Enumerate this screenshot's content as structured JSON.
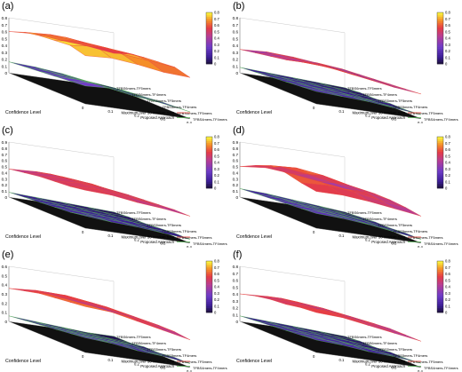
{
  "figure": {
    "panels": [
      "(a)",
      "(b)",
      "(c)",
      "(d)",
      "(e)",
      "(f)"
    ]
  },
  "chart_data": [
    {
      "type": "surface",
      "panel": "(a)",
      "xlabel": "Confidence Level",
      "x_ticks": [
        "0",
        "0.1",
        "0.2",
        "0.3",
        "0.4"
      ],
      "y_categories": [
        "TFBS4mers-TF4mers",
        "TFBS4mers-TF5mers",
        "TFBS5mers-TF4mers",
        "TFBS5mers-TF5mers",
        "TFBS6mers-TF4mers",
        "TFBS6mers-TF5mers"
      ],
      "z_ticks": [
        "0",
        "0.1",
        "0.2",
        "0.3",
        "0.4",
        "0.5",
        "0.6",
        "0.7",
        "0.8"
      ],
      "zlim": [
        0,
        0.8
      ],
      "colorbar_ticks": [
        "0",
        "0.1",
        "0.2",
        "0.3",
        "0.4",
        "0.5",
        "0.6",
        "0.7",
        "0.8"
      ],
      "legend": [
        {
          "label": "Maximum over 50 random runs",
          "color": "#e8433a"
        },
        {
          "label": "Proposed Approach",
          "color": "#5ab45a"
        }
      ],
      "series": [
        {
          "name": "Maximum over 50 random runs",
          "values": [
            [
              0.6,
              0.68,
              0.72,
              0.74,
              0.76,
              0.7
            ],
            [
              0.62,
              0.7,
              0.75,
              0.78,
              0.8,
              0.72
            ],
            [
              0.58,
              0.66,
              0.7,
              0.74,
              0.74,
              0.68
            ],
            [
              0.55,
              0.62,
              0.66,
              0.7,
              0.7,
              0.62
            ],
            [
              0.5,
              0.58,
              0.62,
              0.64,
              0.66,
              0.6
            ]
          ]
        },
        {
          "name": "Proposed Approach",
          "values": [
            [
              0.16,
              0.18,
              0.2,
              0.22,
              0.24,
              0.26
            ],
            [
              0.14,
              0.16,
              0.18,
              0.22,
              0.26,
              0.28
            ],
            [
              0.1,
              0.12,
              0.14,
              0.18,
              0.22,
              0.24
            ],
            [
              0.04,
              0.06,
              0.08,
              0.1,
              0.14,
              0.18
            ],
            [
              0.0,
              0.02,
              0.04,
              0.06,
              0.08,
              0.1
            ]
          ]
        }
      ]
    },
    {
      "type": "surface",
      "panel": "(b)",
      "xlabel": "Confidence Level",
      "x_ticks": [
        "0",
        "0.1",
        "0.2",
        "0.3",
        "0.4"
      ],
      "y_categories": [
        "TFBS4mers-TF4mers",
        "TFBS4mers-TF5mers",
        "TFBS5mers-TF4mers",
        "TFBS5mers-TF5mers",
        "TFBS6mers-TF4mers",
        "TFBS6mers-TF5mers"
      ],
      "z_ticks": [
        "0",
        "0.1",
        "0.2",
        "0.3",
        "0.4",
        "0.5",
        "0.6",
        "0.7",
        "0.8"
      ],
      "zlim": [
        0,
        0.8
      ],
      "colorbar_ticks": [
        "0",
        "0.1",
        "0.2",
        "0.3",
        "0.4",
        "0.5",
        "0.6",
        "0.7",
        "0.8"
      ],
      "legend": [
        {
          "label": "Maximum over 50 random runs",
          "color": "#e8433a"
        },
        {
          "label": "Proposed Approach",
          "color": "#5ab45a"
        }
      ],
      "series": [
        {
          "name": "Maximum over 50 random runs",
          "values": [
            [
              0.34,
              0.38,
              0.42,
              0.46,
              0.52,
              0.6
            ],
            [
              0.36,
              0.4,
              0.44,
              0.46,
              0.5,
              0.56
            ],
            [
              0.34,
              0.36,
              0.4,
              0.42,
              0.44,
              0.48
            ],
            [
              0.3,
              0.32,
              0.34,
              0.36,
              0.38,
              0.4
            ],
            [
              0.26,
              0.28,
              0.3,
              0.32,
              0.34,
              0.36
            ]
          ]
        },
        {
          "name": "Proposed Approach",
          "values": [
            [
              0.08,
              0.1,
              0.12,
              0.14,
              0.16,
              0.18
            ],
            [
              0.06,
              0.08,
              0.1,
              0.12,
              0.14,
              0.16
            ],
            [
              0.04,
              0.06,
              0.08,
              0.1,
              0.12,
              0.14
            ],
            [
              0.02,
              0.04,
              0.06,
              0.06,
              0.08,
              0.1
            ],
            [
              0.0,
              0.02,
              0.02,
              0.04,
              0.04,
              0.06
            ]
          ]
        }
      ]
    },
    {
      "type": "surface",
      "panel": "(c)",
      "xlabel": "Confidence Level",
      "x_ticks": [
        "0",
        "0.1",
        "0.2",
        "0.3",
        "0.4"
      ],
      "y_categories": [
        "TFBS4mers-TF4mers",
        "TFBS4mers-TF5mers",
        "TFBS5mers-TF4mers",
        "TFBS5mers-TF5mers",
        "TFBS6mers-TF4mers",
        "TFBS6mers-TF5mers"
      ],
      "z_ticks": [
        "0",
        "0.1",
        "0.2",
        "0.3",
        "0.4",
        "0.5",
        "0.6",
        "0.7",
        "0.8",
        "0.9"
      ],
      "zlim": [
        0,
        0.9
      ],
      "colorbar_ticks": [
        "0",
        "0.1",
        "0.2",
        "0.3",
        "0.4",
        "0.5",
        "0.6",
        "0.7",
        "0.8"
      ],
      "legend": [
        {
          "label": "Maximum over 50 random runs",
          "color": "#e8433a"
        },
        {
          "label": "Proposed Approach",
          "color": "#5ab45a"
        }
      ],
      "series": [
        {
          "name": "Maximum over 50 random runs",
          "values": [
            [
              0.46,
              0.5,
              0.54,
              0.56,
              0.58,
              0.62
            ],
            [
              0.48,
              0.54,
              0.58,
              0.6,
              0.6,
              0.6
            ],
            [
              0.46,
              0.5,
              0.54,
              0.56,
              0.56,
              0.54
            ],
            [
              0.4,
              0.44,
              0.46,
              0.48,
              0.5,
              0.5
            ],
            [
              0.34,
              0.38,
              0.4,
              0.42,
              0.44,
              0.44
            ]
          ]
        },
        {
          "name": "Proposed Approach",
          "values": [
            [
              0.08,
              0.1,
              0.12,
              0.14,
              0.16,
              0.2
            ],
            [
              0.06,
              0.08,
              0.1,
              0.12,
              0.14,
              0.16
            ],
            [
              0.04,
              0.06,
              0.08,
              0.1,
              0.12,
              0.14
            ],
            [
              0.02,
              0.04,
              0.06,
              0.08,
              0.08,
              0.1
            ],
            [
              0.0,
              0.02,
              0.02,
              0.04,
              0.06,
              0.06
            ]
          ]
        }
      ]
    },
    {
      "type": "surface",
      "panel": "(d)",
      "xlabel": "Confidence Level",
      "x_ticks": [
        "0",
        "0.1",
        "0.2",
        "0.3",
        "0.4"
      ],
      "y_categories": [
        "TFBS4mers-TF4mers",
        "TFBS4mers-TF5mers",
        "TFBS5mers-TF4mers",
        "TFBS5mers-TF5mers",
        "TFBS6mers-TF4mers",
        "TFBS6mers-TF5mers"
      ],
      "z_ticks": [
        "0",
        "0.1",
        "0.2",
        "0.3",
        "0.4",
        "0.5",
        "0.6",
        "0.7",
        "0.8",
        "0.9"
      ],
      "zlim": [
        0,
        0.9
      ],
      "colorbar_ticks": [
        "0",
        "0.1",
        "0.2",
        "0.3",
        "0.4",
        "0.5",
        "0.6",
        "0.7",
        "0.8"
      ],
      "legend": [
        {
          "label": "Maximum over 50 random runs",
          "color": "#e8433a"
        },
        {
          "label": "Proposed Approach",
          "color": "#5ab45a"
        }
      ],
      "series": [
        {
          "name": "Maximum over 50 random runs",
          "values": [
            [
              0.5,
              0.62,
              0.72,
              0.7,
              0.64,
              0.6
            ],
            [
              0.54,
              0.66,
              0.74,
              0.72,
              0.66,
              0.6
            ],
            [
              0.5,
              0.6,
              0.68,
              0.66,
              0.62,
              0.56
            ],
            [
              0.44,
              0.52,
              0.58,
              0.58,
              0.54,
              0.5
            ],
            [
              0.38,
              0.44,
              0.5,
              0.5,
              0.48,
              0.44
            ]
          ]
        },
        {
          "name": "Proposed Approach",
          "values": [
            [
              0.14,
              0.16,
              0.18,
              0.2,
              0.22,
              0.24
            ],
            [
              0.12,
              0.14,
              0.16,
              0.18,
              0.2,
              0.22
            ],
            [
              0.08,
              0.1,
              0.12,
              0.14,
              0.16,
              0.18
            ],
            [
              0.04,
              0.06,
              0.08,
              0.1,
              0.1,
              0.12
            ],
            [
              0.0,
              0.02,
              0.04,
              0.04,
              0.06,
              0.06
            ]
          ]
        }
      ]
    },
    {
      "type": "surface",
      "panel": "(e)",
      "xlabel": "Confidence Level",
      "x_ticks": [
        "0",
        "0.1",
        "0.2",
        "0.3",
        "0.4"
      ],
      "y_categories": [
        "TFBS4mers-TF4mers",
        "TFBS4mers-TF5mers",
        "TFBS5mers-TF4mers",
        "TFBS5mers-TF5mers",
        "TFBS6mers-TF4mers",
        "TFBS6mers-TF5mers"
      ],
      "z_ticks": [
        "0",
        "0.1",
        "0.2",
        "0.3",
        "0.4",
        "0.5",
        "0.6"
      ],
      "zlim": [
        0,
        0.6
      ],
      "colorbar_ticks": [
        "0",
        "0.1",
        "0.2",
        "0.3",
        "0.4",
        "0.5",
        "0.6",
        "0.7",
        "0.8"
      ],
      "legend": [
        {
          "label": "Maximum over 50 random runs",
          "color": "#e8433a"
        },
        {
          "label": "Proposed Approach",
          "color": "#5ab45a"
        }
      ],
      "series": [
        {
          "name": "Maximum over 50 random runs",
          "values": [
            [
              0.36,
              0.4,
              0.44,
              0.46,
              0.48,
              0.5
            ],
            [
              0.38,
              0.42,
              0.46,
              0.48,
              0.48,
              0.48
            ],
            [
              0.34,
              0.38,
              0.42,
              0.44,
              0.44,
              0.42
            ],
            [
              0.3,
              0.34,
              0.36,
              0.38,
              0.38,
              0.36
            ],
            [
              0.26,
              0.28,
              0.3,
              0.32,
              0.32,
              0.3
            ]
          ]
        },
        {
          "name": "Proposed Approach",
          "values": [
            [
              0.06,
              0.08,
              0.1,
              0.12,
              0.14,
              0.16
            ],
            [
              0.04,
              0.06,
              0.08,
              0.1,
              0.12,
              0.14
            ],
            [
              0.02,
              0.04,
              0.06,
              0.08,
              0.1,
              0.1
            ],
            [
              0.0,
              0.02,
              0.04,
              0.06,
              0.06,
              0.08
            ],
            [
              0.0,
              0.0,
              0.02,
              0.02,
              0.04,
              0.04
            ]
          ]
        }
      ]
    },
    {
      "type": "surface",
      "panel": "(f)",
      "xlabel": "Confidence Level",
      "x_ticks": [
        "0",
        "0.1",
        "0.2",
        "0.3",
        "0.4"
      ],
      "y_categories": [
        "TFBS4mers-TF4mers",
        "TFBS4mers-TF5mers",
        "TFBS5mers-TF4mers",
        "TFBS5mers-TF5mers",
        "TFBS6mers-TF4mers",
        "TFBS6mers-TF5mers"
      ],
      "z_ticks": [
        "0",
        "0.1",
        "0.2",
        "0.3",
        "0.4",
        "0.5",
        "0.6",
        "0.7",
        "0.8"
      ],
      "zlim": [
        0,
        0.8
      ],
      "colorbar_ticks": [
        "0",
        "0.1",
        "0.2",
        "0.3",
        "0.4",
        "0.5",
        "0.6",
        "0.7",
        "0.8"
      ],
      "legend": [
        {
          "label": "Maximum over 50 random runs",
          "color": "#e8433a"
        },
        {
          "label": "Proposed Approach",
          "color": "#5ab45a"
        }
      ],
      "series": [
        {
          "name": "Maximum over 50 random runs",
          "values": [
            [
              0.4,
              0.46,
              0.5,
              0.52,
              0.56,
              0.58
            ],
            [
              0.42,
              0.48,
              0.52,
              0.54,
              0.56,
              0.56
            ],
            [
              0.4,
              0.44,
              0.48,
              0.5,
              0.5,
              0.5
            ],
            [
              0.34,
              0.38,
              0.42,
              0.44,
              0.44,
              0.44
            ],
            [
              0.3,
              0.32,
              0.36,
              0.38,
              0.38,
              0.38
            ]
          ]
        },
        {
          "name": "Proposed Approach",
          "values": [
            [
              0.08,
              0.1,
              0.12,
              0.14,
              0.16,
              0.18
            ],
            [
              0.06,
              0.08,
              0.1,
              0.12,
              0.14,
              0.16
            ],
            [
              0.04,
              0.06,
              0.08,
              0.1,
              0.12,
              0.12
            ],
            [
              0.02,
              0.04,
              0.06,
              0.06,
              0.08,
              0.1
            ],
            [
              0.0,
              0.02,
              0.02,
              0.04,
              0.04,
              0.06
            ]
          ]
        }
      ]
    }
  ]
}
